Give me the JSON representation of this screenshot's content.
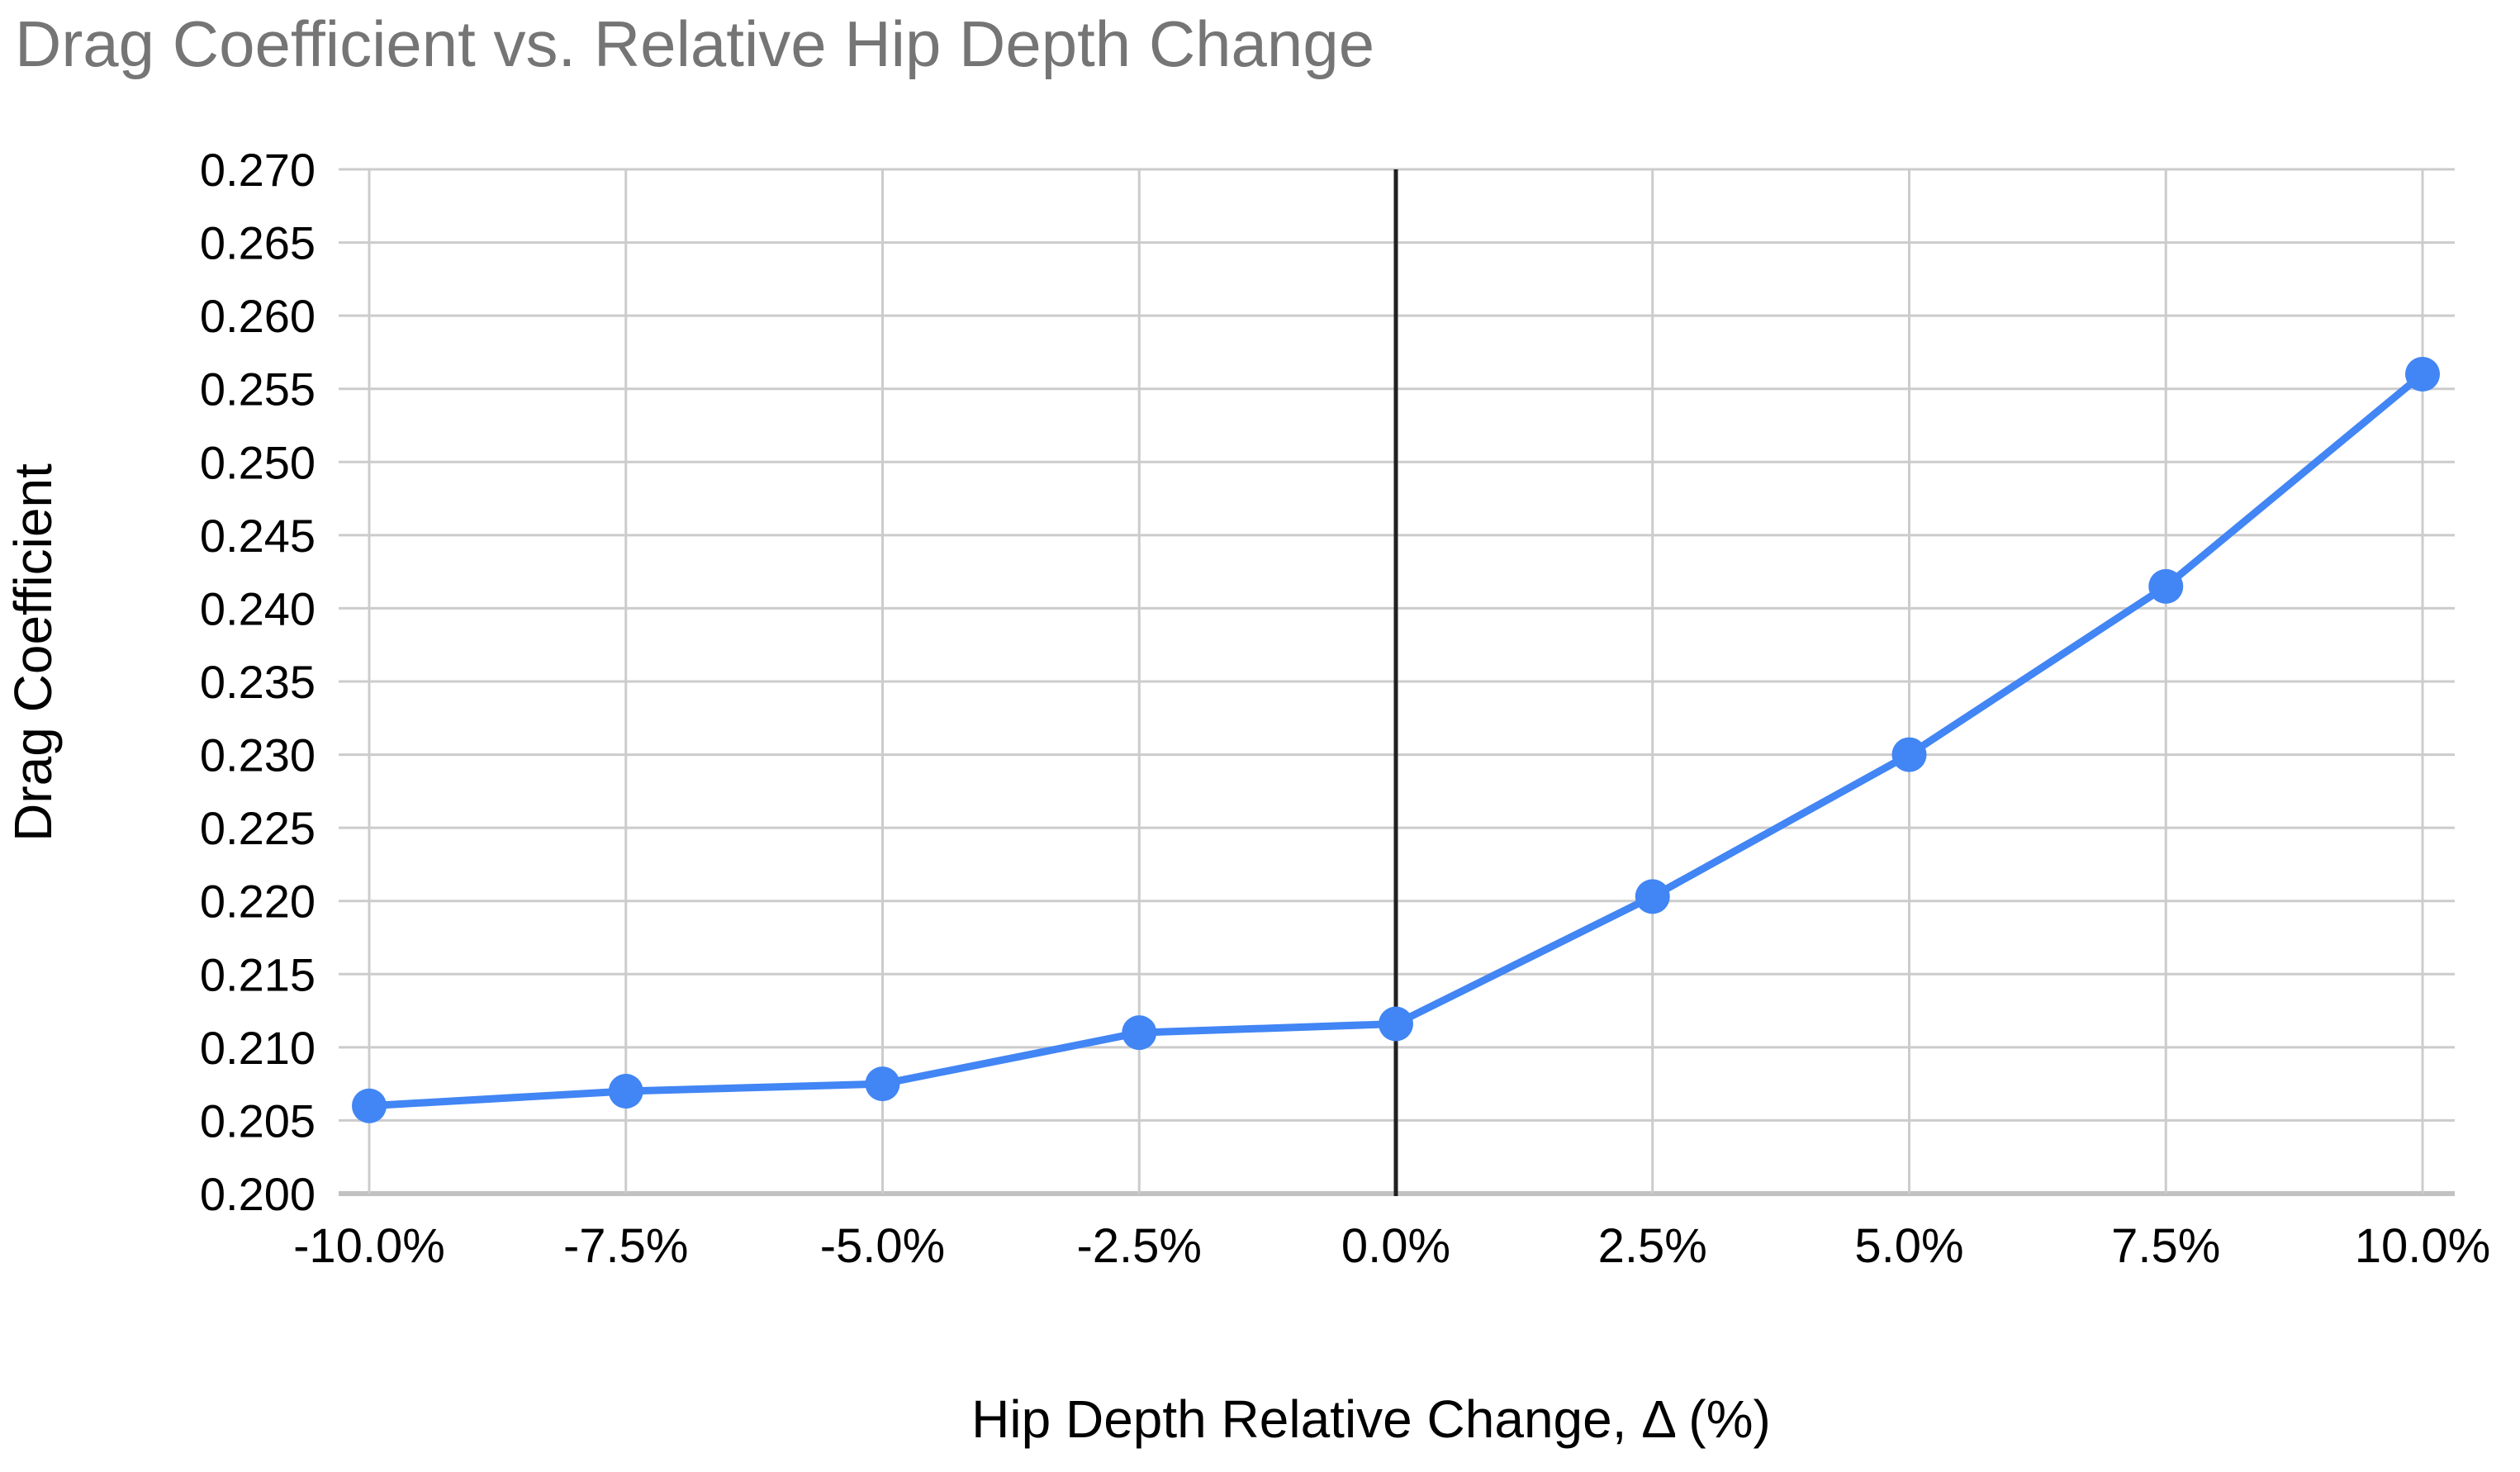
{
  "chart_data": {
    "type": "line",
    "title": "Drag Coefficient vs. Relative Hip Depth Change",
    "xlabel": "Hip Depth Relative Change, Δ (%)",
    "ylabel": "Drag Coefficient",
    "x": [
      -10.0,
      -7.5,
      -5.0,
      -2.5,
      0.0,
      2.5,
      5.0,
      7.5,
      10.0
    ],
    "x_tick_labels": [
      "-10.0%",
      "-7.5%",
      "-5.0%",
      "-2.5%",
      "0.0%",
      "2.5%",
      "5.0%",
      "7.5%",
      "10.0%"
    ],
    "series": [
      {
        "name": "Drag Coefficient",
        "values": [
          0.206,
          0.207,
          0.2075,
          0.211,
          0.2116,
          0.2203,
          0.23,
          0.2415,
          0.256
        ]
      }
    ],
    "ylim": [
      0.2,
      0.27
    ],
    "y_tick_step": 0.005,
    "y_tick_decimals": 3,
    "grid": true,
    "legend_position": "none",
    "reference_line_x": 0.0,
    "marker": "circle",
    "colors": {
      "series": "#4285f4",
      "grid": "#cccccc",
      "baseline": "#c2c2c2",
      "reference_line": "#212121",
      "title": "#757575",
      "tick_labels": "#000000",
      "axis_titles": "#000000",
      "background": "#ffffff"
    }
  }
}
